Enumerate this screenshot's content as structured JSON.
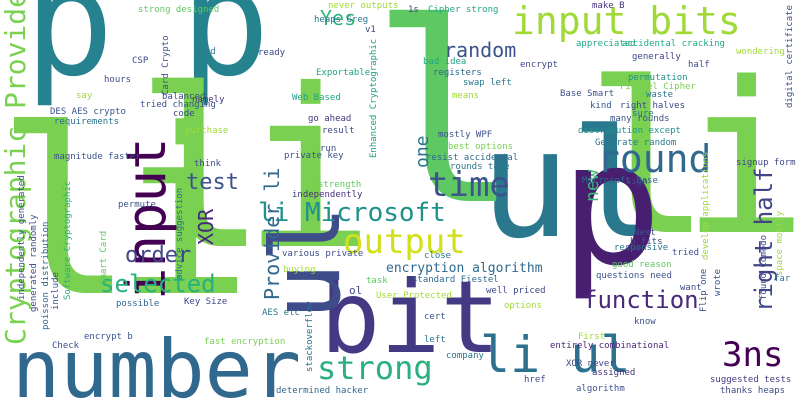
{
  "words": [
    {
      "text": "p",
      "color": "#26828e"
    },
    {
      "text": "p",
      "color": "#25838e"
    },
    {
      "text": "li",
      "color": "#7ad151"
    },
    {
      "text": "li",
      "color": "#7ad151"
    },
    {
      "text": "ul",
      "color": "#2a788e"
    },
    {
      "text": "li",
      "color": "#7ad151"
    },
    {
      "text": "p",
      "color": "#481f70"
    },
    {
      "text": "l",
      "color": "#5ec962"
    },
    {
      "text": "number",
      "color": "#31688e"
    },
    {
      "text": "bit",
      "color": "#443983"
    },
    {
      "text": "ul",
      "color": "#3e4c8a"
    },
    {
      "text": "input bits",
      "color": "#a0da39"
    },
    {
      "text": "input",
      "color": "#440154"
    },
    {
      "text": "li ul",
      "color": "#2c728e"
    },
    {
      "text": "Cryptographic Provider li",
      "color": "#7ad151"
    },
    {
      "text": "strong",
      "color": "#2ab07f"
    },
    {
      "text": "round",
      "color": "#31688e"
    },
    {
      "text": "time",
      "color": "#3b528b"
    },
    {
      "text": "output",
      "color": "#d0e11c"
    },
    {
      "text": "li Microsoft",
      "color": "#21918c"
    },
    {
      "text": "Provider li",
      "color": "#31688e"
    },
    {
      "text": "random",
      "color": "#3b528b"
    },
    {
      "text": "function",
      "color": "#482878"
    },
    {
      "text": "3ns",
      "color": "#440154"
    },
    {
      "text": "right half",
      "color": "#414487"
    },
    {
      "text": "selected",
      "color": "#2ab07f"
    },
    {
      "text": "order",
      "color": "#404688"
    },
    {
      "text": "test",
      "color": "#3b528b"
    },
    {
      "text": "XOR",
      "color": "#482878"
    },
    {
      "text": "Yes",
      "color": "#31b57b"
    },
    {
      "text": "one",
      "color": "#2c728e"
    },
    {
      "text": "new",
      "color": "#3bbb75"
    },
    {
      "text": "encryption algorithm",
      "color": "#306a8e"
    },
    {
      "text": "strong designed",
      "color": "#5ec962"
    },
    {
      "text": "never outputs",
      "color": "#a0da39"
    },
    {
      "text": "1s",
      "color": "#404688"
    },
    {
      "text": "Cipher strong",
      "color": "#21a585"
    },
    {
      "text": "make B",
      "color": "#46337e"
    },
    {
      "text": "heaps Greg",
      "color": "#2a788e"
    },
    {
      "text": "appreciated",
      "color": "#22a884"
    },
    {
      "text": "digital certificate",
      "color": "#3b528b"
    },
    {
      "text": "generally",
      "color": "#3f4788"
    },
    {
      "text": "half",
      "color": "#3e4989"
    },
    {
      "text": "wondering",
      "color": "#a5db36"
    },
    {
      "text": "accidental cracking",
      "color": "#22a884"
    },
    {
      "text": "encrypt",
      "color": "#3f4788"
    },
    {
      "text": "permutation",
      "color": "#21918c"
    },
    {
      "text": "Fiestel Cipher",
      "color": "#7ad151"
    },
    {
      "text": "right halves",
      "color": "#3e4a89"
    },
    {
      "text": "many rounds",
      "color": "#3b528b"
    },
    {
      "text": "distribution except",
      "color": "#21918c"
    },
    {
      "text": "Generate random",
      "color": "#2a788e"
    },
    {
      "text": "signup form",
      "color": "#404688"
    },
    {
      "text": "Microsoft Base",
      "color": "#33638d"
    },
    {
      "text": "kind",
      "color": "#39568c"
    },
    {
      "text": "waste",
      "color": "#2a788e"
    },
    {
      "text": "sure",
      "color": "#2c728e"
    },
    {
      "text": "Base Smart",
      "color": "#3b528b"
    },
    {
      "text": "means",
      "color": "#a0da39"
    },
    {
      "text": "swap left",
      "color": "#2a788e"
    },
    {
      "text": "registers",
      "color": "#31688e"
    },
    {
      "text": "bad idea",
      "color": "#21a585"
    },
    {
      "text": "ready",
      "color": "#3e4989"
    },
    {
      "text": "v1",
      "color": "#3e4989"
    },
    {
      "text": "Exportable",
      "color": "#20a486"
    },
    {
      "text": "Enhanced Cryptographic",
      "color": "#1fa088"
    },
    {
      "text": "Web Based",
      "color": "#20a386"
    },
    {
      "text": "go ahead",
      "color": "#453781"
    },
    {
      "text": "result",
      "color": "#3e4c8a"
    },
    {
      "text": "mostly WPF",
      "color": "#3b528b"
    },
    {
      "text": "best options",
      "color": "#7ad151"
    },
    {
      "text": "resist accidental",
      "color": "#31688e"
    },
    {
      "text": "rounds take",
      "color": "#2a788e"
    },
    {
      "text": "private key",
      "color": "#3b528b"
    },
    {
      "text": "strength",
      "color": "#5ec962"
    },
    {
      "text": "independently",
      "color": "#46327e"
    },
    {
      "text": "various private",
      "color": "#3e4c8a"
    },
    {
      "text": "standard Fiestel",
      "color": "#306a8e"
    },
    {
      "text": "well priced",
      "color": "#3e4989"
    },
    {
      "text": "close",
      "color": "#2a788e"
    },
    {
      "text": "task",
      "color": "#5ec962"
    },
    {
      "text": "User Protected",
      "color": "#a5db36"
    },
    {
      "text": "ol",
      "color": "#3e4989"
    },
    {
      "text": "stackoverflow",
      "color": "#2c728e"
    },
    {
      "text": "cert",
      "color": "#3b528b"
    },
    {
      "text": "options",
      "color": "#a0da39"
    },
    {
      "text": "left",
      "color": "#2a788e"
    },
    {
      "text": "company",
      "color": "#2c728e"
    },
    {
      "text": "entirely combinational",
      "color": "#482878"
    },
    {
      "text": "XOR never",
      "color": "#3e4989"
    },
    {
      "text": "assigned",
      "color": "#46327e"
    },
    {
      "text": "href",
      "color": "#3e4989"
    },
    {
      "text": "algorithm",
      "color": "#3b528b"
    },
    {
      "text": "First",
      "color": "#a0da39"
    },
    {
      "text": "suggested tests",
      "color": "#453781"
    },
    {
      "text": "thanks heaps",
      "color": "#3e4c8a"
    },
    {
      "text": "determined hacker",
      "color": "#31688e"
    },
    {
      "text": "fast encryption",
      "color": "#7ad151"
    },
    {
      "text": "Check",
      "color": "#3e4c8a"
    },
    {
      "text": "encrypt b",
      "color": "#3b528b"
    },
    {
      "text": "AES etc",
      "color": "#2c728e"
    },
    {
      "text": "Key Size",
      "color": "#3e4989"
    },
    {
      "text": "possible",
      "color": "#31688e"
    },
    {
      "text": "buying",
      "color": "#a0da39"
    },
    {
      "text": "permute",
      "color": "#3b528b"
    },
    {
      "text": "think",
      "color": "#3e4c8a"
    },
    {
      "text": "magnitude faster",
      "color": "#3b528b"
    },
    {
      "text": "purchase",
      "color": "#a0da39"
    },
    {
      "text": "code",
      "color": "#3e4989"
    },
    {
      "text": "tried changing",
      "color": "#3b528b"
    },
    {
      "text": "balanced",
      "color": "#3e4989"
    },
    {
      "text": "namely",
      "color": "#46327e"
    },
    {
      "text": "used",
      "color": "#2a788e"
    },
    {
      "text": "hours",
      "color": "#3e4989"
    },
    {
      "text": "CSP",
      "color": "#3e4989"
    },
    {
      "text": "Card Crypto",
      "color": "#3b528b"
    },
    {
      "text": "DES AES crypto",
      "color": "#3b528b"
    },
    {
      "text": "say",
      "color": "#a0da39"
    },
    {
      "text": "requirements",
      "color": "#2c728e"
    },
    {
      "text": "independently generated",
      "color": "#3b528b"
    },
    {
      "text": "generated randomly",
      "color": "#3e4c8a"
    },
    {
      "text": "poisson distribution",
      "color": "#31688e"
    },
    {
      "text": "include",
      "color": "#3b528b"
    },
    {
      "text": "Software Cryptographic",
      "color": "#2ab07f"
    },
    {
      "text": "Smart Card",
      "color": "#5ec962"
    },
    {
      "text": "advice suggestion",
      "color": "#2c728e"
    },
    {
      "text": "run",
      "color": "#3e4989"
    },
    {
      "text": "sign",
      "color": "#3e4989"
    },
    {
      "text": "develop applications",
      "color": "#a0da39"
    },
    {
      "text": "space mostly",
      "color": "#a0da39"
    },
    {
      "text": "Next",
      "color": "#3b528b"
    },
    {
      "text": "b fits",
      "color": "#3e4989"
    },
    {
      "text": "responsive",
      "color": "#2c728e"
    },
    {
      "text": "tried",
      "color": "#3b528b"
    },
    {
      "text": "wrote",
      "color": "#3b528b"
    },
    {
      "text": "Flip one",
      "color": "#3b528b"
    },
    {
      "text": "found Comodo",
      "color": "#3e4989"
    },
    {
      "text": "far",
      "color": "#2c728e"
    },
    {
      "text": "questions need",
      "color": "#3b528b"
    },
    {
      "text": "good reason",
      "color": "#5ec962"
    },
    {
      "text": "want",
      "color": "#3e4989"
    },
    {
      "text": "know",
      "color": "#3b528b"
    }
  ]
}
